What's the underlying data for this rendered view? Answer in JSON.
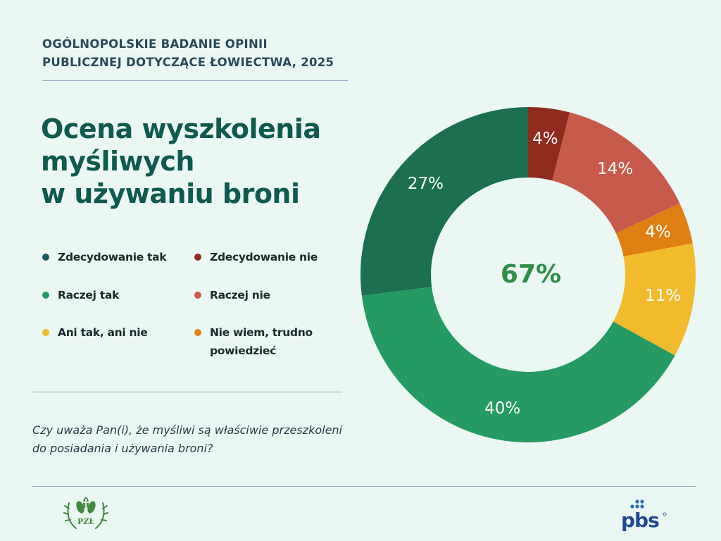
{
  "header": {
    "line1": "OGÓLNOPOLSKIE BADANIE OPINII",
    "line2": "PUBLICZNEJ DOTYCZĄCE ŁOWIECTWA, 2025"
  },
  "title": {
    "line1": "Ocena wyszkolenia",
    "line2": "myśliwych",
    "line3": "w używaniu broni"
  },
  "legend": {
    "decidedly_yes": "Zdecydowanie tak",
    "rather_yes": "Raczej tak",
    "neither": "Ani tak, ani nie",
    "decidedly_no": "Zdecydowanie nie",
    "rather_no": "Raczej nie",
    "dont_know_line1": "Nie wiem, trudno",
    "dont_know_line2": "powiedzieć"
  },
  "question": "Czy uważa Pan(i), że myśliwi są właściwie przeszkoleni do posiadania i używania broni?",
  "logos": {
    "left_text": "PZŁ",
    "right_text": "pbs"
  },
  "colors": {
    "decidedly_yes": "#1c7050",
    "rather_yes": "#259a62",
    "neither": "#f2bb2b",
    "decidedly_no": "#8f2a1e",
    "rather_no": "#c85a4c",
    "dont_know": "#e07f12",
    "center_text": "#2f8f4a",
    "title": "#0f5a4e"
  },
  "chart_data": {
    "type": "pie",
    "donut": true,
    "center_label": "67%",
    "slices": [
      {
        "label": "Zdecydowanie nie",
        "value": 4,
        "display": "4%",
        "color": "#8f2a1e"
      },
      {
        "label": "Raczej nie",
        "value": 14,
        "display": "14%",
        "color": "#c85a4c"
      },
      {
        "label": "Nie wiem, trudno powiedzieć",
        "value": 4,
        "display": "4%",
        "color": "#e07f12"
      },
      {
        "label": "Ani tak, ani nie",
        "value": 11,
        "display": "11%",
        "color": "#f2bb2b"
      },
      {
        "label": "Raczej tak",
        "value": 40,
        "display": "40%",
        "color": "#259a62"
      },
      {
        "label": "Zdecydowanie tak",
        "value": 27,
        "display": "27%",
        "color": "#1c7050"
      }
    ]
  }
}
